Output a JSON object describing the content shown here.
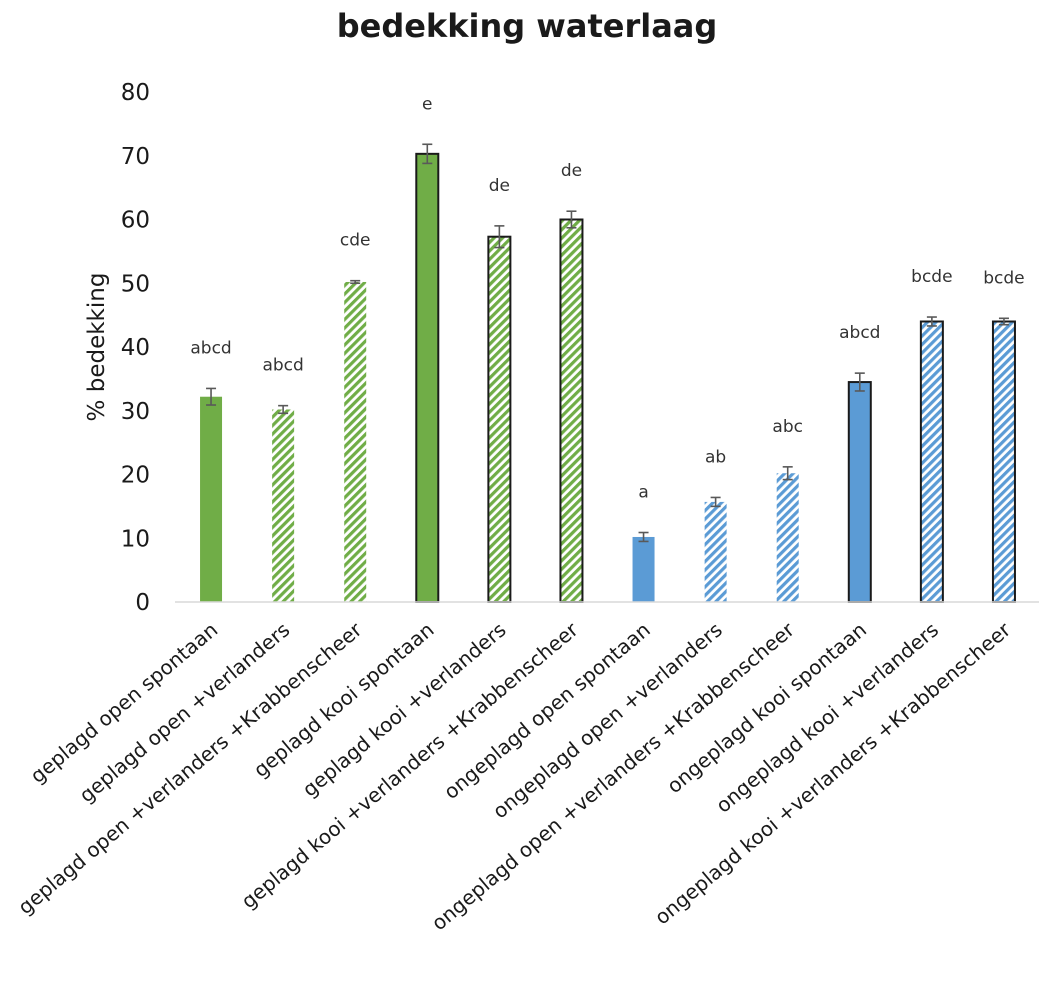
{
  "chart_data": {
    "type": "bar",
    "title": "bedekking waterlaag",
    "xlabel": "",
    "ylabel": "% bedekking",
    "ylim": [
      0,
      80
    ],
    "yticks": [
      0,
      10,
      20,
      30,
      40,
      50,
      60,
      70,
      80
    ],
    "grid": false,
    "legend": "none",
    "categories": [
      "geplagd open spontaan",
      "geplagd open +verlanders",
      "geplagd open +verlanders +Krabbenscheer",
      "geplagd kooi spontaan",
      "geplagd kooi +verlanders",
      "geplagd kooi +verlanders +Krabbenscheer",
      "ongeplagd open spontaan",
      "ongeplagd open +verlanders",
      "ongeplagd open +verlanders +Krabbenscheer",
      "ongeplagd kooi spontaan",
      "ongeplagd kooi +verlanders",
      "ongeplagd kooi +verlanders +Krabbenscheer"
    ],
    "values": [
      32.2,
      30.2,
      50.2,
      70.3,
      57.3,
      60.0,
      10.2,
      15.7,
      20.2,
      34.5,
      44.0,
      44.0
    ],
    "errors": [
      1.3,
      0.6,
      0.2,
      1.5,
      1.7,
      1.3,
      0.7,
      0.7,
      1.0,
      1.4,
      0.7,
      0.5
    ],
    "significance_labels": [
      "abcd",
      "abcd",
      "cde",
      "e",
      "de",
      "de",
      "a",
      "ab",
      "abc",
      "abcd",
      "bcde",
      "bcde"
    ],
    "bar_fill": [
      "solid",
      "hatched",
      "hatched",
      "solid",
      "hatched",
      "hatched",
      "solid",
      "hatched",
      "hatched",
      "solid",
      "hatched",
      "hatched"
    ],
    "bar_outlined": [
      false,
      false,
      false,
      true,
      true,
      true,
      false,
      false,
      false,
      true,
      true,
      true
    ],
    "bar_colors": [
      "#70ad47",
      "#70ad47",
      "#70ad47",
      "#70ad47",
      "#70ad47",
      "#70ad47",
      "#5b9bd5",
      "#5b9bd5",
      "#5b9bd5",
      "#5b9bd5",
      "#5b9bd5",
      "#5b9bd5"
    ]
  }
}
